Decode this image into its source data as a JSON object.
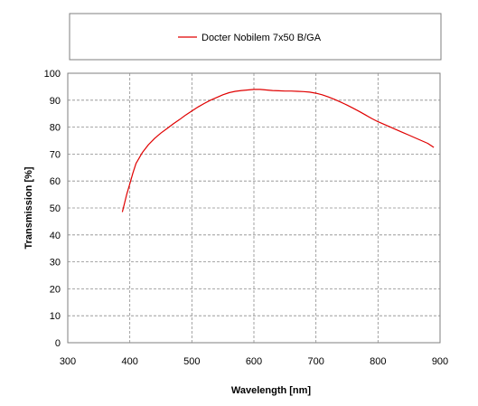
{
  "chart_data": {
    "type": "line",
    "xlabel": "Wavelength [nm]",
    "ylabel": "Transmission [%]",
    "xlim": [
      300,
      900
    ],
    "ylim": [
      0,
      100
    ],
    "x_ticks": [
      "300",
      "400",
      "500",
      "600",
      "700",
      "800",
      "900"
    ],
    "y_ticks": [
      "0",
      "10",
      "20",
      "30",
      "40",
      "50",
      "60",
      "70",
      "80",
      "90",
      "100"
    ],
    "grid": true,
    "legend_position": "top",
    "series": [
      {
        "name": "Docter Nobilem 7x50 B/GA",
        "color": "#e00000",
        "x": [
          388,
          395,
          400,
          405,
          410,
          420,
          430,
          440,
          450,
          460,
          470,
          480,
          490,
          500,
          510,
          520,
          530,
          540,
          550,
          560,
          570,
          580,
          590,
          600,
          610,
          620,
          630,
          640,
          650,
          660,
          670,
          680,
          690,
          700,
          710,
          720,
          730,
          740,
          750,
          760,
          770,
          780,
          790,
          800,
          810,
          820,
          830,
          840,
          850,
          860,
          870,
          880,
          890
        ],
        "y": [
          48.5,
          55,
          59,
          63,
          66.5,
          70.5,
          73.5,
          75.8,
          77.8,
          79.5,
          81.2,
          82.8,
          84.5,
          86,
          87.5,
          88.8,
          90,
          91,
          92,
          92.8,
          93.3,
          93.6,
          93.8,
          94,
          94,
          93.8,
          93.6,
          93.5,
          93.4,
          93.4,
          93.3,
          93.2,
          93,
          92.6,
          92,
          91.2,
          90.3,
          89.3,
          88.2,
          87,
          85.8,
          84.5,
          83.2,
          82,
          81,
          80,
          79,
          78,
          77,
          76,
          75,
          74,
          72.5
        ]
      }
    ]
  }
}
